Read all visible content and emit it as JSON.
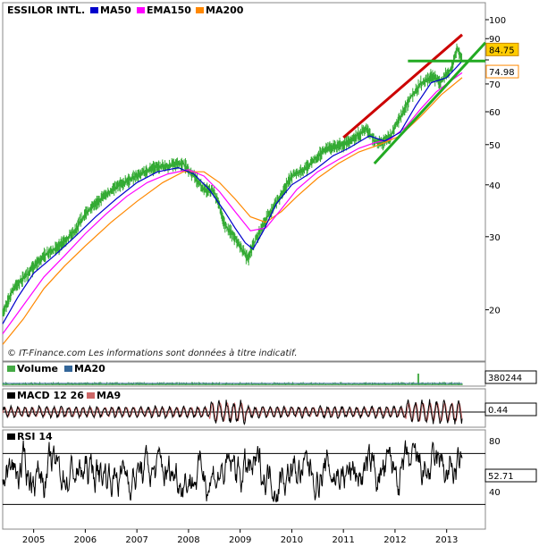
{
  "chart_data": [
    {
      "type": "line",
      "panel": "price",
      "title": "ESSILOR INTL.",
      "scale": "log",
      "ylim": [
        15.5,
        102
      ],
      "y_ticks": [
        100,
        90,
        80,
        70,
        60,
        50,
        40,
        30,
        20
      ],
      "y_tick_labels": [
        "100",
        "90",
        "",
        "70",
        "60",
        "50",
        "40",
        "30",
        "20"
      ],
      "x_range": [
        2004.4,
        2013.75
      ],
      "x_ticks": [
        2005,
        2006,
        2007,
        2008,
        2009,
        2010,
        2011,
        2012,
        2013
      ],
      "x_tick_labels": [
        "2005",
        "2006",
        "2007",
        "2008",
        "2009",
        "2010",
        "2011",
        "2012",
        "2013"
      ],
      "legend": [
        {
          "name": "MA50",
          "color": "#0000cc"
        },
        {
          "name": "EMA150",
          "color": "#ff00ff"
        },
        {
          "name": "MA200",
          "color": "#ff8800"
        }
      ],
      "price_color": "#33aa33",
      "price_series": {
        "x": [
          2004.4,
          2004.6,
          2004.9,
          2005.2,
          2005.5,
          2005.8,
          2006.0,
          2006.3,
          2006.6,
          2007.0,
          2007.3,
          2007.6,
          2007.9,
          2008.1,
          2008.3,
          2008.5,
          2008.7,
          2008.85,
          2009.0,
          2009.15,
          2009.3,
          2009.5,
          2009.8,
          2010.0,
          2010.3,
          2010.5,
          2010.7,
          2011.0,
          2011.2,
          2011.45,
          2011.6,
          2011.75,
          2011.9,
          2012.1,
          2012.3,
          2012.5,
          2012.7,
          2012.9,
          2013.0,
          2013.1,
          2013.2,
          2013.3
        ],
        "y": [
          19.5,
          22.5,
          24.5,
          27.0,
          28.5,
          31.0,
          34.0,
          37.0,
          39.5,
          42.0,
          44.0,
          44.5,
          45.0,
          42.0,
          39.0,
          38.5,
          32.0,
          30.5,
          28.5,
          26.5,
          29.5,
          33.0,
          38.0,
          42.0,
          44.0,
          47.0,
          49.0,
          50.0,
          52.0,
          54.5,
          51.0,
          50.5,
          52.0,
          58.0,
          65.0,
          70.0,
          73.0,
          71.0,
          74.0,
          76.5,
          86.0,
          80.0
        ]
      },
      "ma50_series": {
        "x": [
          2004.4,
          2004.7,
          2005.0,
          2005.4,
          2005.8,
          2006.2,
          2006.6,
          2007.0,
          2007.4,
          2007.8,
          2008.1,
          2008.4,
          2008.7,
          2008.9,
          2009.1,
          2009.25,
          2009.45,
          2009.7,
          2010.0,
          2010.4,
          2010.8,
          2011.1,
          2011.5,
          2011.8,
          2012.1,
          2012.4,
          2012.7,
          2013.0,
          2013.2,
          2013.3
        ],
        "y": [
          18.5,
          21.5,
          24.5,
          27.0,
          30.0,
          33.5,
          37.0,
          40.5,
          43.0,
          44.0,
          42.5,
          39.0,
          34.5,
          31.5,
          29.0,
          28.0,
          31.0,
          36.0,
          40.0,
          43.0,
          47.0,
          49.0,
          52.5,
          51.0,
          53.5,
          62.0,
          70.5,
          72.5,
          77.0,
          79.5
        ]
      },
      "ema150_series": {
        "x": [
          2004.4,
          2004.8,
          2005.2,
          2005.6,
          2006.0,
          2006.4,
          2006.8,
          2007.2,
          2007.6,
          2008.0,
          2008.3,
          2008.6,
          2008.9,
          2009.2,
          2009.5,
          2009.8,
          2010.1,
          2010.5,
          2010.9,
          2011.3,
          2011.6,
          2011.9,
          2012.2,
          2012.5,
          2012.8,
          2013.0,
          2013.3
        ],
        "y": [
          17.5,
          20.5,
          24.0,
          27.0,
          30.5,
          34.0,
          37.5,
          40.5,
          42.5,
          43.5,
          42.0,
          38.5,
          34.5,
          31.0,
          31.5,
          35.0,
          39.0,
          43.0,
          46.0,
          49.0,
          50.5,
          51.5,
          55.0,
          61.0,
          67.0,
          70.0,
          74.5
        ]
      },
      "ma200_series": {
        "x": [
          2004.4,
          2004.8,
          2005.2,
          2005.6,
          2006.0,
          2006.5,
          2007.0,
          2007.5,
          2007.9,
          2008.3,
          2008.6,
          2008.9,
          2009.2,
          2009.5,
          2009.8,
          2010.1,
          2010.5,
          2010.9,
          2011.3,
          2011.7,
          2012.1,
          2012.5,
          2012.9,
          2013.3
        ],
        "y": [
          16.5,
          19.0,
          22.5,
          25.5,
          28.5,
          32.5,
          36.5,
          40.5,
          43.0,
          43.0,
          40.5,
          37.0,
          33.5,
          32.5,
          34.5,
          37.5,
          41.5,
          45.0,
          48.0,
          50.0,
          52.5,
          58.5,
          66.0,
          72.5
        ]
      },
      "trend_lines": [
        {
          "name": "upper-resistance",
          "color": "#cc0000",
          "x": [
            2011.0,
            2013.3
          ],
          "y": [
            52.0,
            92.0
          ]
        },
        {
          "name": "lower-support",
          "color": "#22aa22",
          "x": [
            2011.6,
            2013.75
          ],
          "y": [
            45.0,
            88.0
          ]
        },
        {
          "name": "horizontal-level",
          "color": "#22aa22",
          "x": [
            2012.25,
            2013.75
          ],
          "y": [
            79.5,
            79.5
          ]
        }
      ],
      "last_value_labels": [
        {
          "text": "84.75",
          "value": 84.75,
          "bg": "#ffcc00",
          "border": "#cc8800",
          "color": "#000000"
        },
        {
          "text": "74.98",
          "value": 74.98,
          "bg": "#ffffff",
          "border": "#ff8800",
          "color": "#cc4400"
        }
      ],
      "source_note": "© IT-Finance.com   Les informations sont données à titre indicatif."
    },
    {
      "type": "bar",
      "panel": "volume",
      "legend": [
        {
          "name": "Volume",
          "color": "#44aa44"
        },
        {
          "name": "MA20",
          "color": "#336699"
        }
      ],
      "last_value_label": "380244",
      "spikes": [
        {
          "x": 2012.45,
          "value_ratio": 1.0
        }
      ],
      "typical_ratio": 0.2
    },
    {
      "type": "line",
      "panel": "macd",
      "legend": [
        {
          "name": "MACD 12 26",
          "color": "#000000"
        },
        {
          "name": "MA9",
          "color": "#cc6666"
        }
      ],
      "last_value_label": "0.44"
    },
    {
      "type": "line",
      "panel": "rsi",
      "legend": [
        {
          "name": "RSI 14",
          "color": "#000000"
        }
      ],
      "ylim": [
        12,
        85
      ],
      "reference_lines": [
        70,
        30
      ],
      "y_ticks": [
        80,
        40
      ],
      "y_tick_labels": [
        "80",
        "40"
      ],
      "last_value_label": "52.71"
    }
  ]
}
